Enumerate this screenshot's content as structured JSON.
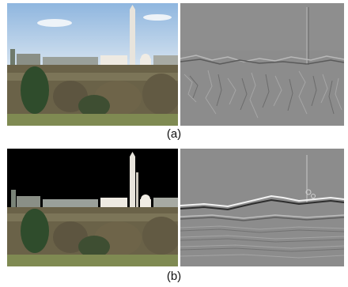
{
  "figure": {
    "caption_a": "(a)",
    "caption_b": "(b)"
  },
  "colors": {
    "sky": "#aecbe6",
    "masked_sky": "#000000",
    "edge_map_gray": "#8c8c8c",
    "foliage": "#5a5a48"
  }
}
